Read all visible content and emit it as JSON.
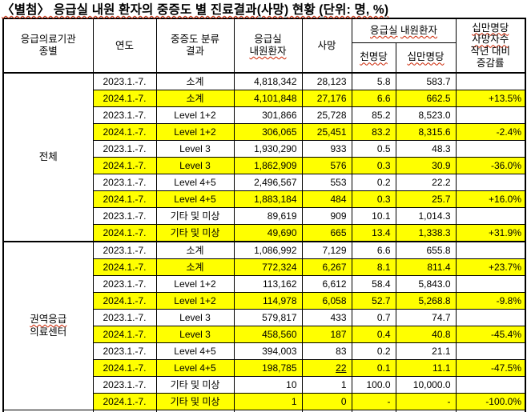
{
  "colors": {
    "highlight_row": "#ffff00",
    "spellcheck_underline": "#cc2200",
    "border": "#000000",
    "text": "#000000"
  },
  "title": "〈별첨〉 응급실 내원 환자의 중증도 별 진료결과(사망) 현황 (단위: 명, %)",
  "header": {
    "org_type": [
      "응급의료기관",
      "종별"
    ],
    "year": "연도",
    "severity": [
      "중증도 분류",
      "결과"
    ],
    "patients": [
      "응급실",
      "내원환자"
    ],
    "death": "사망",
    "er_span": [
      "응급실",
      "내원환자"
    ],
    "per_1k": "천명당",
    "per_100k": "십만명당",
    "yoy": [
      "십만명당",
      "사망자수",
      "작년 대비",
      "증감률"
    ]
  },
  "groups": [
    {
      "label": [
        "전체"
      ],
      "squiggle_lines": [],
      "rows": [
        {
          "year": "2023.1.-7.",
          "severity": "소계",
          "patients": "4,818,342",
          "deaths": "28,123",
          "per_1k": "5.8",
          "per_100k": "583.7",
          "yoy": "",
          "highlight": false
        },
        {
          "year": "2024.1.-7.",
          "severity": "소계",
          "patients": "4,101,848",
          "deaths": "27,176",
          "per_1k": "6.6",
          "per_100k": "662.5",
          "yoy": "+13.5%",
          "highlight": true
        },
        {
          "year": "2023.1.-7.",
          "severity": "Level 1+2",
          "patients": "301,866",
          "deaths": "25,728",
          "per_1k": "85.2",
          "per_100k": "8,523.0",
          "yoy": "",
          "highlight": false
        },
        {
          "year": "2024.1.-7.",
          "severity": "Level 1+2",
          "patients": "306,065",
          "deaths": "25,451",
          "per_1k": "83.2",
          "per_100k": "8,315.6",
          "yoy": "-2.4%",
          "highlight": true
        },
        {
          "year": "2023.1.-7.",
          "severity": "Level 3",
          "patients": "1,930,290",
          "deaths": "933",
          "per_1k": "0.5",
          "per_100k": "48.3",
          "yoy": "",
          "highlight": false
        },
        {
          "year": "2024.1.-7.",
          "severity": "Level 3",
          "patients": "1,862,909",
          "deaths": "576",
          "per_1k": "0.3",
          "per_100k": "30.9",
          "yoy": "-36.0%",
          "highlight": true
        },
        {
          "year": "2023.1.-7.",
          "severity": "Level 4+5",
          "patients": "2,496,567",
          "deaths": "553",
          "per_1k": "0.2",
          "per_100k": "22.2",
          "yoy": "",
          "highlight": false
        },
        {
          "year": "2024.1.-7.",
          "severity": "Level 4+5",
          "patients": "1,883,184",
          "deaths": "484",
          "per_1k": "0.3",
          "per_100k": "25.7",
          "yoy": "+16.0%",
          "highlight": true
        },
        {
          "year": "2023.1.-7.",
          "severity": "기타 및 미상",
          "patients": "89,619",
          "deaths": "909",
          "per_1k": "10.1",
          "per_100k": "1,014.3",
          "yoy": "",
          "highlight": false
        },
        {
          "year": "2024.1.-7.",
          "severity": "기타 및 미상",
          "patients": "49,690",
          "deaths": "665",
          "per_1k": "13.4",
          "per_100k": "1,338.3",
          "yoy": "+31.9%",
          "highlight": true
        }
      ]
    },
    {
      "label": [
        "권역응급",
        "의료센터"
      ],
      "squiggle_lines": [
        0
      ],
      "rows": [
        {
          "year": "2023.1.-7.",
          "severity": "소계",
          "patients": "1,086,992",
          "deaths": "7,129",
          "per_1k": "6.6",
          "per_100k": "655.8",
          "yoy": "",
          "highlight": false
        },
        {
          "year": "2024.1.-7.",
          "severity": "소계",
          "patients": "772,324",
          "deaths": "6,267",
          "per_1k": "8.1",
          "per_100k": "811.4",
          "yoy": "+23.7%",
          "highlight": true
        },
        {
          "year": "2023.1.-7.",
          "severity": "Level 1+2",
          "patients": "113,162",
          "deaths": "6,612",
          "per_1k": "58.4",
          "per_100k": "5,843.0",
          "yoy": "",
          "highlight": false
        },
        {
          "year": "2024.1.-7.",
          "severity": "Level 1+2",
          "patients": "114,978",
          "deaths": "6,058",
          "per_1k": "52.7",
          "per_100k": "5,268.8",
          "yoy": "-9.8%",
          "highlight": true
        },
        {
          "year": "2023.1.-7.",
          "severity": "Level 3",
          "patients": "579,817",
          "deaths": "433",
          "per_1k": "0.7",
          "per_100k": "74.7",
          "yoy": "",
          "highlight": false
        },
        {
          "year": "2024.1.-7.",
          "severity": "Level 3",
          "patients": "458,560",
          "deaths": "187",
          "per_1k": "0.4",
          "per_100k": "40.8",
          "yoy": "-45.4%",
          "highlight": true
        },
        {
          "year": "2023.1.-7.",
          "severity": "Level 4+5",
          "patients": "394,003",
          "deaths": "83",
          "per_1k": "0.2",
          "per_100k": "21.1",
          "yoy": "",
          "highlight": false
        },
        {
          "year": "2024.1.-7.",
          "severity": "Level 4+5",
          "patients": "198,785",
          "deaths": "22",
          "per_1k": "0.1",
          "per_100k": "11.1",
          "yoy": "-47.5%",
          "highlight": true,
          "deaths_underline": true
        },
        {
          "year": "2023.1.-7.",
          "severity": "기타 및 미상",
          "patients": "10",
          "deaths": "1",
          "per_1k": "100.0",
          "per_100k": "10,000.0",
          "yoy": "",
          "highlight": false
        },
        {
          "year": "2024.1.-7.",
          "severity": "기타 및 미상",
          "patients": "1",
          "deaths": "0",
          "per_1k": "-",
          "per_100k": "-",
          "yoy": "-100.0%",
          "highlight": true
        }
      ]
    }
  ]
}
